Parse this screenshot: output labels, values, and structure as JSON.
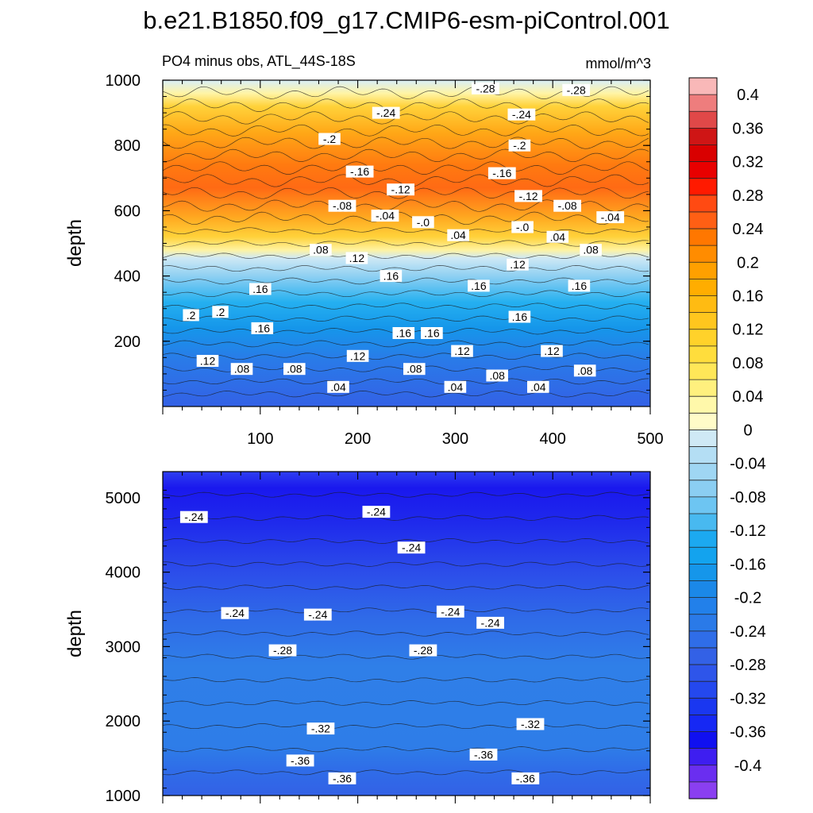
{
  "chart_data": {
    "type": "contour",
    "title": "b.e21.B1850.f09_g17.CMIP6-esm-piControl.001",
    "subtitle_left": "PO4 minus obs, ATL_44S-18S",
    "units": "mmol/m^3",
    "panels": [
      {
        "name": "upper",
        "ylabel": "depth",
        "ylim": [
          1000,
          0
        ],
        "xlim": [
          0,
          500
        ],
        "y_ticks": [
          200,
          400,
          600,
          800,
          1000
        ],
        "y_tick_labels": [
          "200",
          "400",
          "600",
          "800",
          "1000"
        ],
        "x_ticks": [
          100,
          200,
          300,
          400,
          500
        ],
        "x_tick_labels": [
          "100",
          "200",
          "300",
          "400",
          "500"
        ],
        "contour_labels": [
          {
            "text": ".04",
            "x": 180,
            "y": 60
          },
          {
            "text": ".04",
            "x": 300,
            "y": 60
          },
          {
            "text": ".04",
            "x": 385,
            "y": 60
          },
          {
            "text": ".08",
            "x": 81,
            "y": 115
          },
          {
            "text": ".08",
            "x": 135,
            "y": 115
          },
          {
            "text": ".08",
            "x": 258,
            "y": 115
          },
          {
            "text": ".08",
            "x": 343,
            "y": 95
          },
          {
            "text": ".08",
            "x": 433,
            "y": 110
          },
          {
            "text": ".12",
            "x": 46,
            "y": 140
          },
          {
            "text": ".12",
            "x": 200,
            "y": 155
          },
          {
            "text": ".12",
            "x": 307,
            "y": 170
          },
          {
            "text": ".12",
            "x": 399,
            "y": 170
          },
          {
            "text": ".16",
            "x": 102,
            "y": 240
          },
          {
            "text": ".16",
            "x": 247,
            "y": 225
          },
          {
            "text": ".16",
            "x": 276,
            "y": 225
          },
          {
            "text": ".16",
            "x": 366,
            "y": 275
          },
          {
            "text": ".2",
            "x": 29,
            "y": 280
          },
          {
            "text": ".2",
            "x": 59,
            "y": 290
          },
          {
            "text": ".16",
            "x": 100,
            "y": 360
          },
          {
            "text": ".16",
            "x": 234,
            "y": 400
          },
          {
            "text": ".16",
            "x": 324,
            "y": 370
          },
          {
            "text": ".16",
            "x": 427,
            "y": 370
          },
          {
            "text": ".12",
            "x": 199,
            "y": 455
          },
          {
            "text": ".12",
            "x": 364,
            "y": 435
          },
          {
            "text": ".08",
            "x": 162,
            "y": 480
          },
          {
            "text": ".08",
            "x": 439,
            "y": 480
          },
          {
            "text": ".04",
            "x": 303,
            "y": 525
          },
          {
            "text": ".04",
            "x": 405,
            "y": 520
          },
          {
            "text": "-.0",
            "x": 267,
            "y": 565
          },
          {
            "text": "-.0",
            "x": 369,
            "y": 550
          },
          {
            "text": "-.04",
            "x": 228,
            "y": 585
          },
          {
            "text": "-.04",
            "x": 459,
            "y": 580
          },
          {
            "text": "-.08",
            "x": 184,
            "y": 615
          },
          {
            "text": "-.08",
            "x": 415,
            "y": 615
          },
          {
            "text": "-.12",
            "x": 244,
            "y": 665
          },
          {
            "text": "-.12",
            "x": 375,
            "y": 645
          },
          {
            "text": "-.16",
            "x": 202,
            "y": 720
          },
          {
            "text": "-.16",
            "x": 348,
            "y": 715
          },
          {
            "text": "-.2",
            "x": 171,
            "y": 820
          },
          {
            "text": "-.2",
            "x": 366,
            "y": 800
          },
          {
            "text": "-.24",
            "x": 229,
            "y": 900
          },
          {
            "text": "-.24",
            "x": 368,
            "y": 895
          },
          {
            "text": "-.28",
            "x": 331,
            "y": 975
          },
          {
            "text": "-.28",
            "x": 424,
            "y": 970
          }
        ]
      },
      {
        "name": "lower",
        "ylabel": "depth",
        "ylim": [
          5350,
          1000
        ],
        "xlim": [
          0,
          500
        ],
        "y_ticks": [
          1000,
          2000,
          3000,
          4000,
          5000
        ],
        "y_tick_labels": [
          "1000",
          "2000",
          "3000",
          "4000",
          "5000"
        ],
        "contour_labels": [
          {
            "text": "-.36",
            "x": 184,
            "y": 1230
          },
          {
            "text": "-.36",
            "x": 372,
            "y": 1230
          },
          {
            "text": "-.36",
            "x": 141,
            "y": 1470
          },
          {
            "text": "-.36",
            "x": 329,
            "y": 1550
          },
          {
            "text": "-.32",
            "x": 162,
            "y": 1900
          },
          {
            "text": "-.32",
            "x": 377,
            "y": 1960
          },
          {
            "text": "-.28",
            "x": 123,
            "y": 2950
          },
          {
            "text": "-.28",
            "x": 267,
            "y": 2950
          },
          {
            "text": "-.24",
            "x": 74,
            "y": 3450
          },
          {
            "text": "-.24",
            "x": 159,
            "y": 3430
          },
          {
            "text": "-.24",
            "x": 295,
            "y": 3470
          },
          {
            "text": "-.24",
            "x": 336,
            "y": 3320
          },
          {
            "text": "-.24",
            "x": 255,
            "y": 4330
          },
          {
            "text": "-.24",
            "x": 32,
            "y": 4740
          },
          {
            "text": "-.24",
            "x": 219,
            "y": 4810
          }
        ]
      }
    ],
    "colorbar": {
      "levels": [
        "0.4",
        "0.36",
        "0.32",
        "0.28",
        "0.24",
        "0.2",
        "0.16",
        "0.12",
        "0.08",
        "0.04",
        "0",
        "-0.04",
        "-0.08",
        "-0.12",
        "-0.16",
        "-0.2",
        "-0.24",
        "-0.28",
        "-0.32",
        "-0.36",
        "-0.4"
      ],
      "colors": [
        "#f9b8b8",
        "#ee7d7d",
        "#e04848",
        "#cf1515",
        "#d90000",
        "#e80000",
        "#ff1a00",
        "#ff4a12",
        "#ff5f14",
        "#ff7700",
        "#ff8c00",
        "#ffa000",
        "#ffad00",
        "#ffbb12",
        "#ffc61e",
        "#ffd22a",
        "#ffdd3c",
        "#ffe758",
        "#fff07e",
        "#fff8aa",
        "#fffbc8",
        "#cfe9f5",
        "#b4def4",
        "#9fd6f3",
        "#8bcef2",
        "#6dc5f2",
        "#48b9f0",
        "#1ca9f0",
        "#13a3ee",
        "#1596ea",
        "#1b88e8",
        "#2280ea",
        "#2a7ae8",
        "#2f6de8",
        "#3361e6",
        "#2e55ea",
        "#2448ee",
        "#1a37f0",
        "#1628f4",
        "#1010f0",
        "#3e1ef0",
        "#6a2ef0",
        "#8a3ff0"
      ]
    }
  }
}
